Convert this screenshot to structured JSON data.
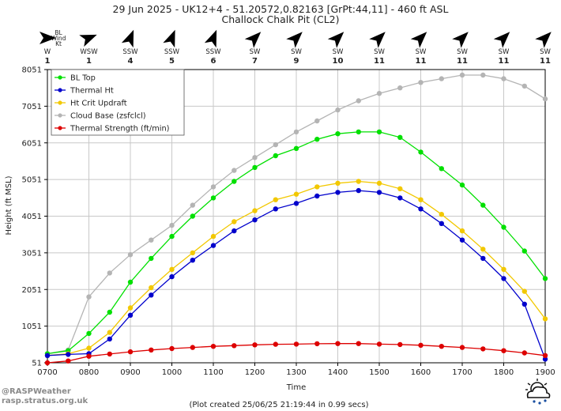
{
  "title_line1": "29 Jun 2025 - UK12+4 - 51.20572,0.82163 [GrPt:44,11]  - 460 ft ASL",
  "title_line2": "Challock Chalk Pit (CL2)",
  "wind_header": [
    "BL",
    "Wind",
    "Kt"
  ],
  "footer_left": [
    "@RASPWeather",
    "rasp.stratus.org.uk"
  ],
  "footer_center": "(Plot created 25/06/25 21:19:44 in 0.99 secs)",
  "icons": [
    "wind-arrow-icon",
    "weather-cloud-sun-rain-icon"
  ],
  "colors": {
    "bl_top": "#00e000",
    "thermal_ht": "#0000cc",
    "ht_crit": "#f2c800",
    "cloud_base": "#b4b4b4",
    "thermal_strength": "#dd0000"
  },
  "chart_data": {
    "type": "line",
    "xlabel": "Time",
    "ylabel": "Height (ft MSL)",
    "xlim": [
      "0700",
      "1900"
    ],
    "ylim": [
      51,
      8051
    ],
    "yticks": [
      51,
      1051,
      2051,
      3051,
      4051,
      5051,
      6051,
      7051,
      8051
    ],
    "xticks": [
      "0700",
      "0800",
      "0900",
      "1000",
      "1100",
      "1200",
      "1300",
      "1400",
      "1500",
      "1600",
      "1700",
      "1800",
      "1900"
    ],
    "grid": true,
    "legend_position": "top-left",
    "x": [
      "0700",
      "0730",
      "0800",
      "0830",
      "0900",
      "0930",
      "1000",
      "1030",
      "1100",
      "1130",
      "1200",
      "1230",
      "1300",
      "1330",
      "1400",
      "1430",
      "1500",
      "1530",
      "1600",
      "1630",
      "1700",
      "1730",
      "1800",
      "1830",
      "1900"
    ],
    "series": [
      {
        "name": "BL Top",
        "color_key": "bl_top",
        "values": [
          300,
          380,
          850,
          1430,
          2250,
          2900,
          3500,
          4050,
          4550,
          5000,
          5380,
          5700,
          5900,
          6150,
          6300,
          6350,
          6350,
          6200,
          5800,
          5350,
          4900,
          4350,
          3750,
          3100,
          2350
        ]
      },
      {
        "name": "Thermal Ht",
        "color_key": "thermal_ht",
        "values": [
          250,
          280,
          300,
          700,
          1350,
          1900,
          2400,
          2850,
          3250,
          3650,
          3950,
          4250,
          4400,
          4600,
          4700,
          4750,
          4700,
          4550,
          4250,
          3850,
          3400,
          2900,
          2350,
          1650,
          150
        ]
      },
      {
        "name": "Ht Crit Updraft",
        "color_key": "ht_crit",
        "values": [
          250,
          300,
          450,
          880,
          1550,
          2100,
          2600,
          3050,
          3500,
          3900,
          4200,
          4500,
          4650,
          4850,
          4950,
          5000,
          4950,
          4800,
          4500,
          4100,
          3650,
          3150,
          2600,
          2000,
          1250
        ]
      },
      {
        "name": "Cloud Base (zsfclcl)",
        "color_key": "cloud_base",
        "values": [
          300,
          400,
          1850,
          2500,
          3000,
          3400,
          3800,
          4350,
          4850,
          5300,
          5650,
          6000,
          6350,
          6650,
          6950,
          7200,
          7400,
          7550,
          7700,
          7800,
          7900,
          7900,
          7800,
          7600,
          7250
        ]
      },
      {
        "name": "Thermal Strength (ft/min)",
        "color_key": "thermal_strength",
        "values": [
          51,
          100,
          230,
          290,
          350,
          400,
          440,
          470,
          500,
          520,
          540,
          555,
          560,
          570,
          575,
          575,
          560,
          550,
          530,
          500,
          470,
          430,
          380,
          320,
          250
        ]
      }
    ],
    "wind": {
      "times": [
        "0700",
        "0800",
        "0900",
        "1000",
        "1100",
        "1200",
        "1300",
        "1400",
        "1500",
        "1600",
        "1700",
        "1800",
        "1900"
      ],
      "directions": [
        "W",
        "WSW",
        "SSW",
        "SSW",
        "SSW",
        "SW",
        "SW",
        "SW",
        "SW",
        "SW",
        "SW",
        "SW",
        "SW"
      ],
      "speeds": [
        1,
        1,
        4,
        5,
        6,
        7,
        9,
        10,
        11,
        11,
        11,
        11,
        11
      ],
      "from_deg": [
        270,
        248,
        202,
        202,
        202,
        225,
        225,
        225,
        225,
        225,
        225,
        225,
        225
      ]
    }
  }
}
